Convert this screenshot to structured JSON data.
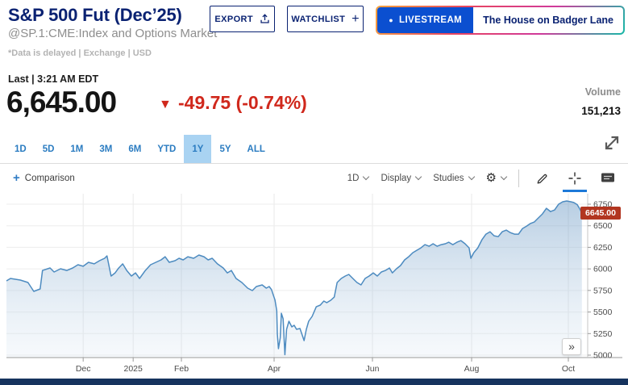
{
  "header": {
    "title": "S&P 500 Fut (Dec’25)",
    "subtitle": "@SP.1:CME:Index and Options Market",
    "disclaimer": "*Data is delayed | Exchange | USD",
    "export_label": "EXPORT",
    "watchlist_label": "WATCHLIST",
    "livestream_label": "LIVESTREAM",
    "livestream_show": "The House on Badger Lane"
  },
  "quote": {
    "last_label": "Last | 3:21 AM EDT",
    "price": "6,645.00",
    "change": "-49.75 (-0.74%)",
    "direction": "down",
    "volume_label": "Volume",
    "volume": "151,213"
  },
  "range_tabs": {
    "items": [
      {
        "label": "1D"
      },
      {
        "label": "5D"
      },
      {
        "label": "1M"
      },
      {
        "label": "3M"
      },
      {
        "label": "6M"
      },
      {
        "label": "YTD"
      },
      {
        "label": "1Y",
        "selected": true
      },
      {
        "label": "5Y"
      },
      {
        "label": "ALL"
      }
    ]
  },
  "chart_toolbar": {
    "comparison_label": "Comparison",
    "interval_label": "1D",
    "display_label": "Display",
    "studies_label": "Studies"
  },
  "icons": {
    "down_triangle": "▼",
    "live_dot": "●",
    "watchlist_plus": "+",
    "comparison_plus": "+",
    "gear": "⚙",
    "collapse": "»"
  },
  "colors": {
    "brand_navy": "#0a2272",
    "tab_blue": "#2b7cc1",
    "tab_selected_bg": "#a9d3f2",
    "negative_red": "#d0281c",
    "price_tag_bg": "#b23620",
    "livestream_blue": "#0b4fd0",
    "line_blue": "#4d8bc0",
    "footer_navy": "#16335e"
  },
  "chart_data": {
    "type": "area",
    "symbol": "@SP.1",
    "range": "1Y",
    "interval": "1D",
    "last_price": 6645.0,
    "last_price_label": "6645.00",
    "ylim": [
      4950,
      6870
    ],
    "grid": true,
    "y_ticks": [
      6750,
      6500,
      6250,
      6000,
      5750,
      5500,
      5250,
      5000
    ],
    "x_ticks": [
      {
        "label": "Dec",
        "t": 0.132
      },
      {
        "label": "2025",
        "t": 0.218
      },
      {
        "label": "Feb",
        "t": 0.301
      },
      {
        "label": "Apr",
        "t": 0.4605
      },
      {
        "label": "Jun",
        "t": 0.6297
      },
      {
        "label": "Aug",
        "t": 0.8003
      },
      {
        "label": "Oct",
        "t": 0.9667
      }
    ],
    "points": [
      [
        0.0,
        5861
      ],
      [
        0.007,
        5889
      ],
      [
        0.024,
        5870
      ],
      [
        0.037,
        5842
      ],
      [
        0.047,
        5739
      ],
      [
        0.058,
        5767
      ],
      [
        0.062,
        5982
      ],
      [
        0.075,
        6011
      ],
      [
        0.082,
        5964
      ],
      [
        0.093,
        6001
      ],
      [
        0.104,
        5982
      ],
      [
        0.114,
        6011
      ],
      [
        0.123,
        6048
      ],
      [
        0.132,
        6030
      ],
      [
        0.141,
        6076
      ],
      [
        0.151,
        6058
      ],
      [
        0.16,
        6095
      ],
      [
        0.169,
        6123
      ],
      [
        0.173,
        6151
      ],
      [
        0.18,
        5917
      ],
      [
        0.187,
        5954
      ],
      [
        0.193,
        6010
      ],
      [
        0.2,
        6058
      ],
      [
        0.207,
        5982
      ],
      [
        0.215,
        5917
      ],
      [
        0.222,
        5954
      ],
      [
        0.229,
        5889
      ],
      [
        0.239,
        5982
      ],
      [
        0.248,
        6048
      ],
      [
        0.257,
        6076
      ],
      [
        0.266,
        6104
      ],
      [
        0.273,
        6141
      ],
      [
        0.28,
        6076
      ],
      [
        0.29,
        6095
      ],
      [
        0.297,
        6123
      ],
      [
        0.304,
        6104
      ],
      [
        0.312,
        6141
      ],
      [
        0.322,
        6123
      ],
      [
        0.331,
        6160
      ],
      [
        0.34,
        6141
      ],
      [
        0.347,
        6104
      ],
      [
        0.354,
        6123
      ],
      [
        0.363,
        6058
      ],
      [
        0.373,
        6011
      ],
      [
        0.38,
        5954
      ],
      [
        0.387,
        5982
      ],
      [
        0.395,
        5889
      ],
      [
        0.405,
        5842
      ],
      [
        0.415,
        5777
      ],
      [
        0.423,
        5749
      ],
      [
        0.43,
        5795
      ],
      [
        0.44,
        5814
      ],
      [
        0.447,
        5777
      ],
      [
        0.452,
        5795
      ],
      [
        0.456,
        5760
      ],
      [
        0.459,
        5700
      ],
      [
        0.462,
        5640
      ],
      [
        0.465,
        5515
      ],
      [
        0.466,
        5250
      ],
      [
        0.468,
        5075
      ],
      [
        0.471,
        5200
      ],
      [
        0.473,
        5486
      ],
      [
        0.476,
        5421
      ],
      [
        0.479,
        5005
      ],
      [
        0.482,
        5299
      ],
      [
        0.486,
        5393
      ],
      [
        0.491,
        5328
      ],
      [
        0.495,
        5346
      ],
      [
        0.499,
        5299
      ],
      [
        0.505,
        5309
      ],
      [
        0.512,
        5168
      ],
      [
        0.516,
        5299
      ],
      [
        0.52,
        5393
      ],
      [
        0.526,
        5449
      ],
      [
        0.533,
        5561
      ],
      [
        0.54,
        5580
      ],
      [
        0.546,
        5627
      ],
      [
        0.551,
        5608
      ],
      [
        0.558,
        5636
      ],
      [
        0.564,
        5673
      ],
      [
        0.569,
        5842
      ],
      [
        0.576,
        5889
      ],
      [
        0.583,
        5917
      ],
      [
        0.589,
        5936
      ],
      [
        0.596,
        5889
      ],
      [
        0.603,
        5842
      ],
      [
        0.61,
        5814
      ],
      [
        0.617,
        5889
      ],
      [
        0.624,
        5917
      ],
      [
        0.631,
        5954
      ],
      [
        0.638,
        5917
      ],
      [
        0.645,
        5964
      ],
      [
        0.652,
        5982
      ],
      [
        0.659,
        6011
      ],
      [
        0.664,
        5954
      ],
      [
        0.671,
        6001
      ],
      [
        0.678,
        6039
      ],
      [
        0.685,
        6104
      ],
      [
        0.692,
        6141
      ],
      [
        0.699,
        6188
      ],
      [
        0.706,
        6216
      ],
      [
        0.713,
        6244
      ],
      [
        0.72,
        6281
      ],
      [
        0.727,
        6262
      ],
      [
        0.734,
        6291
      ],
      [
        0.741,
        6262
      ],
      [
        0.748,
        6281
      ],
      [
        0.755,
        6291
      ],
      [
        0.761,
        6309
      ],
      [
        0.768,
        6281
      ],
      [
        0.775,
        6309
      ],
      [
        0.782,
        6328
      ],
      [
        0.789,
        6291
      ],
      [
        0.796,
        6244
      ],
      [
        0.799,
        6123
      ],
      [
        0.804,
        6188
      ],
      [
        0.811,
        6244
      ],
      [
        0.818,
        6337
      ],
      [
        0.825,
        6403
      ],
      [
        0.832,
        6431
      ],
      [
        0.839,
        6384
      ],
      [
        0.846,
        6374
      ],
      [
        0.853,
        6431
      ],
      [
        0.86,
        6450
      ],
      [
        0.867,
        6421
      ],
      [
        0.874,
        6403
      ],
      [
        0.881,
        6403
      ],
      [
        0.888,
        6468
      ],
      [
        0.895,
        6496
      ],
      [
        0.901,
        6524
      ],
      [
        0.908,
        6543
      ],
      [
        0.915,
        6590
      ],
      [
        0.922,
        6637
      ],
      [
        0.929,
        6702
      ],
      [
        0.936,
        6665
      ],
      [
        0.943,
        6683
      ],
      [
        0.95,
        6750
      ],
      [
        0.957,
        6778
      ],
      [
        0.964,
        6787
      ],
      [
        0.971,
        6778
      ],
      [
        0.976,
        6770
      ],
      [
        0.982,
        6745
      ],
      [
        0.986,
        6700
      ],
      [
        0.99,
        6645
      ]
    ],
    "title": "S&P 500 Fut (Dec’25) 1Y price chart",
    "xlabel": "",
    "ylabel": "",
    "legend": false
  },
  "misc": {
    "collapse_label": "»"
  }
}
